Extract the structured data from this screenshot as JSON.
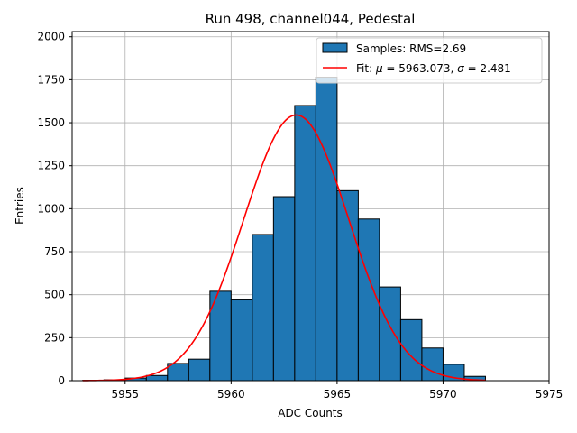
{
  "chart_data": {
    "type": "bar",
    "title": "Run 498, channel044, Pedestal",
    "xlabel": "ADC Counts",
    "ylabel": "Entries",
    "xlim": [
      5952.5,
      5975
    ],
    "ylim": [
      0,
      2030
    ],
    "grid": true,
    "legend_position": "top-right",
    "x_ticks": [
      5955,
      5960,
      5965,
      5970,
      5975
    ],
    "y_ticks": [
      0,
      250,
      500,
      750,
      1000,
      1250,
      1500,
      1750,
      2000
    ],
    "bin_edges": [
      5953,
      5954,
      5955,
      5956,
      5957,
      5958,
      5959,
      5960,
      5961,
      5962,
      5963,
      5964,
      5965,
      5966,
      5967,
      5968,
      5969,
      5970,
      5971,
      5972
    ],
    "counts": [
      2,
      5,
      15,
      30,
      100,
      125,
      520,
      470,
      850,
      1070,
      1600,
      1765,
      1105,
      940,
      545,
      355,
      190,
      95,
      25
    ],
    "series": [
      {
        "name": "Samples: RMS=2.69",
        "kind": "histogram",
        "color": "#1f77b4",
        "edgecolor": "#000000"
      },
      {
        "name": "Fit: μ = 5963.073, σ = 2.481",
        "kind": "gaussian-fit",
        "color": "#ff0000",
        "mu": 5963.073,
        "sigma": 2.481,
        "amplitude": 1545,
        "x_range": [
          5953,
          5972
        ]
      }
    ],
    "legend": {
      "samples_label": "Samples: RMS=2.69",
      "fit_prefix": "Fit: ",
      "mu_symbol": "μ",
      "mu_text": " = 5963.073, ",
      "sigma_symbol": "σ",
      "sigma_text": " = 2.481"
    }
  }
}
